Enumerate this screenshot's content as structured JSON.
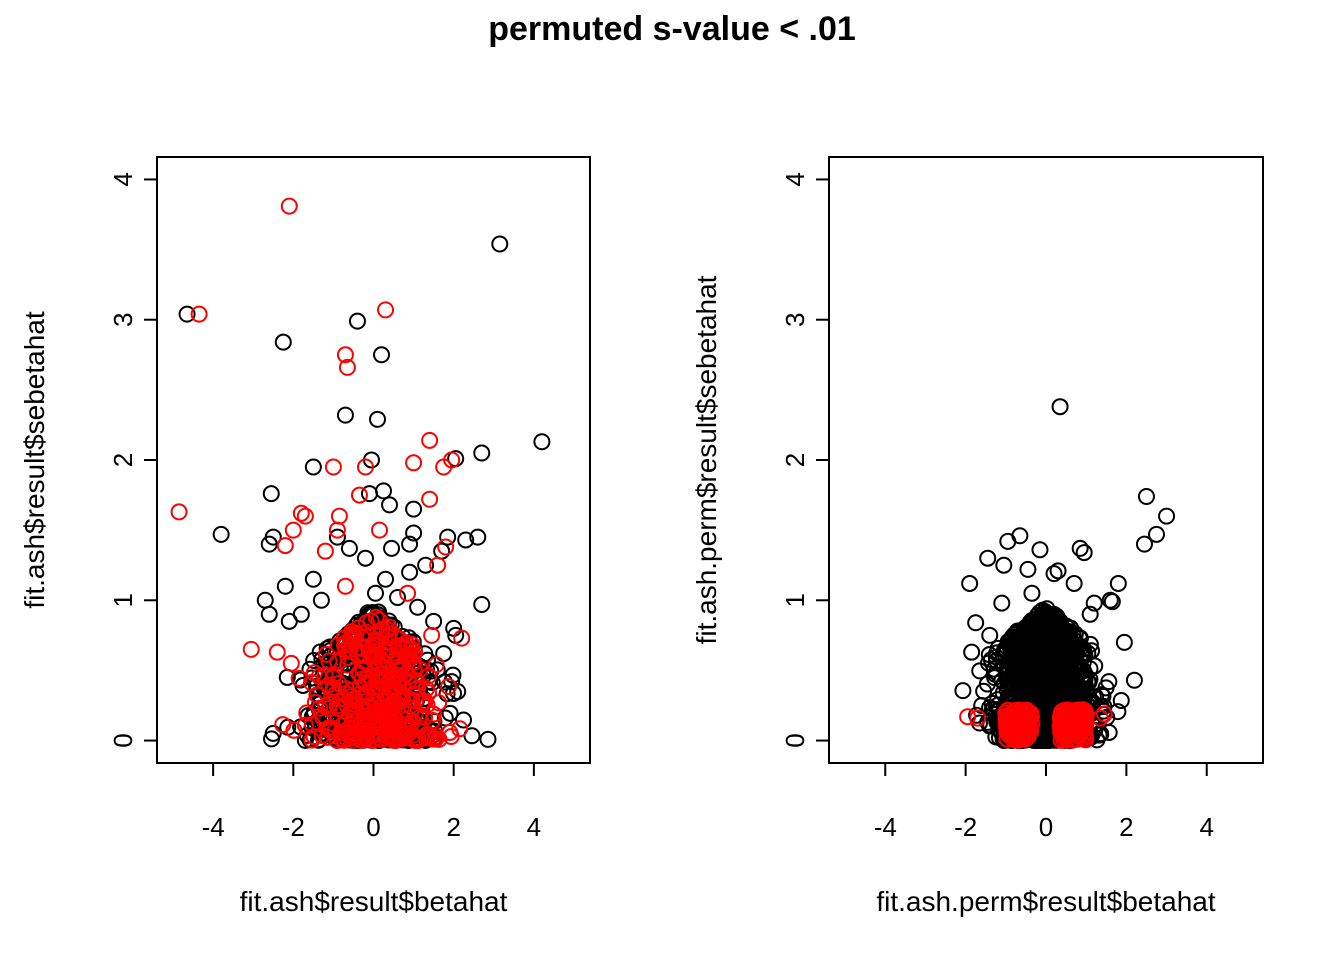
{
  "figure_title": "permuted s-value < .01",
  "colors": {
    "not_significant": "#000000",
    "significant": "#ff0000"
  },
  "chart_data": [
    {
      "type": "scatter",
      "xlabel": "fit.ash$result$betahat",
      "ylabel": "fit.ash$result$sebetahat",
      "xlim": [
        -5.4,
        5.4
      ],
      "ylim": [
        -0.16,
        4.16
      ],
      "xticks": [
        -4,
        -2,
        0,
        2,
        4
      ],
      "yticks": [
        0,
        1,
        2,
        3,
        4
      ],
      "grid": false,
      "legend": "none",
      "series": [
        {
          "color": "#000000",
          "points": [
            [
              3.15,
              3.54
            ],
            [
              -4.65,
              3.04
            ],
            [
              -0.4,
              2.99
            ],
            [
              -2.25,
              2.84
            ],
            [
              0.2,
              2.75
            ],
            [
              -0.7,
              2.32
            ],
            [
              0.1,
              2.29
            ],
            [
              4.2,
              2.13
            ],
            [
              2.7,
              2.05
            ],
            [
              -0.05,
              2.0
            ],
            [
              2.05,
              2.01
            ],
            [
              -1.5,
              1.95
            ],
            [
              -2.55,
              1.76
            ],
            [
              0.25,
              1.78
            ],
            [
              -0.1,
              1.76
            ],
            [
              0.4,
              1.68
            ],
            [
              1.0,
              1.65
            ],
            [
              -3.8,
              1.47
            ],
            [
              -2.5,
              1.45
            ],
            [
              -2.6,
              1.4
            ],
            [
              2.6,
              1.45
            ],
            [
              2.3,
              1.43
            ],
            [
              1.85,
              1.45
            ],
            [
              1.0,
              1.48
            ],
            [
              0.45,
              1.37
            ],
            [
              -0.6,
              1.37
            ],
            [
              -0.9,
              1.45
            ],
            [
              0.9,
              1.4
            ],
            [
              1.3,
              1.25
            ],
            [
              -1.5,
              1.15
            ],
            [
              -0.2,
              1.3
            ],
            [
              0.9,
              1.2
            ],
            [
              1.7,
              1.35
            ],
            [
              -2.2,
              1.1
            ],
            [
              2.7,
              0.97
            ],
            [
              -2.7,
              1.0
            ],
            [
              -2.6,
              0.9
            ],
            [
              -2.1,
              0.85
            ],
            [
              1.1,
              0.95
            ],
            [
              2.0,
              0.8
            ],
            [
              2.05,
              0.75
            ],
            [
              -2.15,
              0.45
            ],
            [
              2.1,
              0.35
            ],
            [
              1.95,
              0.42
            ],
            [
              1.75,
              0.62
            ],
            [
              -1.8,
              0.9
            ],
            [
              0.05,
              1.05
            ],
            [
              0.6,
              1.02
            ],
            [
              1.5,
              0.85
            ],
            [
              -1.3,
              1.0
            ],
            [
              0.3,
              1.15
            ]
          ],
          "cluster": {
            "n": 700,
            "xmean": 0.0,
            "xsd": 0.75,
            "ymax": 0.95
          }
        },
        {
          "color": "#ff0000",
          "points": [
            [
              -2.1,
              3.81
            ],
            [
              -4.35,
              3.04
            ],
            [
              0.3,
              3.07
            ],
            [
              -0.7,
              2.75
            ],
            [
              -0.65,
              2.66
            ],
            [
              1.4,
              2.14
            ],
            [
              1.0,
              1.98
            ],
            [
              1.95,
              2.0
            ],
            [
              -1.0,
              1.95
            ],
            [
              -0.2,
              1.95
            ],
            [
              1.75,
              1.95
            ],
            [
              1.4,
              1.72
            ],
            [
              -4.85,
              1.63
            ],
            [
              -0.35,
              1.75
            ],
            [
              -1.7,
              1.6
            ],
            [
              -1.8,
              1.62
            ],
            [
              -0.85,
              1.6
            ],
            [
              -2.0,
              1.5
            ],
            [
              -0.9,
              1.5
            ],
            [
              0.15,
              1.5
            ],
            [
              -2.2,
              1.39
            ],
            [
              1.8,
              1.38
            ],
            [
              -1.2,
              1.35
            ],
            [
              1.6,
              1.25
            ],
            [
              -3.05,
              0.65
            ],
            [
              -2.4,
              0.63
            ],
            [
              2.2,
              0.73
            ],
            [
              1.45,
              0.75
            ],
            [
              -2.05,
              0.55
            ],
            [
              -0.7,
              1.1
            ],
            [
              0.85,
              1.05
            ]
          ],
          "cluster": {
            "n": 350,
            "xmean": 0.0,
            "xsd": 0.8,
            "ymax": 0.9
          }
        }
      ]
    },
    {
      "type": "scatter",
      "xlabel": "fit.ash.perm$result$betahat",
      "ylabel": "fit.ash.perm$result$sebetahat",
      "xlim": [
        -5.4,
        5.4
      ],
      "ylim": [
        -0.16,
        4.16
      ],
      "xticks": [
        -4,
        -2,
        0,
        2,
        4
      ],
      "yticks": [
        0,
        1,
        2,
        3,
        4
      ],
      "grid": false,
      "legend": "none",
      "series": [
        {
          "color": "#000000",
          "points": [
            [
              0.35,
              2.38
            ],
            [
              2.5,
              1.74
            ],
            [
              3.0,
              1.6
            ],
            [
              2.75,
              1.47
            ],
            [
              2.45,
              1.4
            ],
            [
              -0.65,
              1.46
            ],
            [
              -0.95,
              1.42
            ],
            [
              0.85,
              1.37
            ],
            [
              0.95,
              1.34
            ],
            [
              -0.15,
              1.36
            ],
            [
              -1.9,
              1.12
            ],
            [
              -1.45,
              1.3
            ],
            [
              -1.05,
              1.25
            ],
            [
              -0.45,
              1.22
            ],
            [
              0.3,
              1.21
            ],
            [
              0.2,
              1.19
            ],
            [
              0.7,
              1.12
            ],
            [
              1.8,
              1.12
            ],
            [
              -1.75,
              0.84
            ],
            [
              -1.85,
              0.63
            ],
            [
              1.95,
              0.7
            ],
            [
              1.2,
              0.98
            ],
            [
              1.6,
              1.0
            ],
            [
              1.65,
              0.99
            ],
            [
              2.2,
              0.43
            ],
            [
              -1.6,
              0.25
            ],
            [
              -0.35,
              1.05
            ],
            [
              -1.1,
              0.98
            ],
            [
              1.1,
              0.9
            ],
            [
              -1.4,
              0.75
            ]
          ],
          "cluster": {
            "n": 1400,
            "xmean": 0.0,
            "xsd": 0.55,
            "ymax": 0.95
          }
        },
        {
          "color": "#ff0000",
          "points": [
            [
              -1.95,
              0.17
            ],
            [
              -1.7,
              0.16
            ],
            [
              1.35,
              0.16
            ],
            [
              1.45,
              0.19
            ]
          ],
          "cluster": {
            "n": 260,
            "xabs_min": 0.35,
            "xabs_max": 1.0,
            "ymax": 0.22
          }
        }
      ]
    }
  ]
}
